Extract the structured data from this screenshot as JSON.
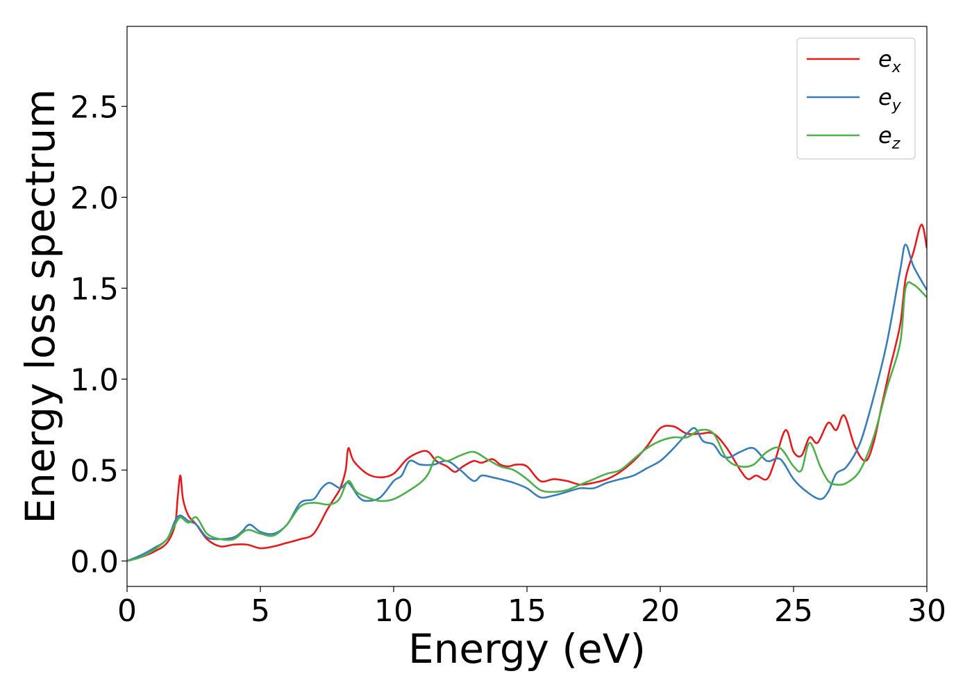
{
  "chart_data": {
    "type": "line",
    "title": "",
    "xlabel": "Energy (eV)",
    "ylabel": "Energy loss spectrum",
    "xlim": [
      0,
      30
    ],
    "ylim": [
      -0.14,
      2.94
    ],
    "xticks": [
      0,
      5,
      10,
      15,
      20,
      25,
      30
    ],
    "yticks": [
      0.0,
      0.5,
      1.0,
      1.5,
      2.0,
      2.5
    ],
    "xtick_labels": [
      "0",
      "5",
      "10",
      "15",
      "20",
      "25",
      "30"
    ],
    "ytick_labels": [
      "0.0",
      "0.5",
      "1.0",
      "1.5",
      "2.0",
      "2.5"
    ],
    "grid": false,
    "legend_position": "top-right",
    "series": [
      {
        "name": "e_x",
        "legend_base": "e",
        "legend_sub": "x",
        "color": "#e41a1c",
        "x": [
          0,
          0.5,
          1.0,
          1.5,
          1.8,
          1.9,
          2.0,
          2.1,
          2.3,
          2.6,
          3.0,
          3.5,
          4.0,
          4.5,
          5.0,
          5.5,
          6.0,
          6.5,
          7.0,
          7.5,
          7.8,
          8.0,
          8.2,
          8.3,
          8.5,
          9.0,
          9.5,
          10.0,
          10.5,
          11.0,
          11.3,
          11.6,
          12.0,
          12.3,
          12.6,
          13.0,
          13.3,
          13.7,
          14.0,
          14.3,
          14.6,
          15.0,
          15.5,
          16.0,
          16.5,
          17.0,
          17.5,
          18.0,
          18.5,
          19.0,
          19.5,
          20.0,
          20.5,
          21.0,
          21.5,
          22.0,
          22.5,
          23.0,
          23.3,
          23.6,
          24.0,
          24.3,
          24.7,
          25.0,
          25.3,
          25.6,
          25.9,
          26.3,
          26.6,
          26.9,
          27.3,
          27.7,
          28.0,
          28.3,
          28.6,
          29.0,
          29.2,
          29.5,
          29.8,
          30.0
        ],
        "values": [
          0.0,
          0.02,
          0.05,
          0.1,
          0.2,
          0.35,
          0.47,
          0.34,
          0.25,
          0.2,
          0.12,
          0.08,
          0.09,
          0.09,
          0.07,
          0.08,
          0.1,
          0.12,
          0.15,
          0.28,
          0.35,
          0.4,
          0.5,
          0.62,
          0.55,
          0.48,
          0.46,
          0.48,
          0.56,
          0.6,
          0.6,
          0.55,
          0.52,
          0.49,
          0.52,
          0.55,
          0.54,
          0.56,
          0.53,
          0.52,
          0.53,
          0.52,
          0.44,
          0.45,
          0.44,
          0.42,
          0.43,
          0.45,
          0.49,
          0.55,
          0.63,
          0.73,
          0.74,
          0.7,
          0.7,
          0.7,
          0.62,
          0.5,
          0.45,
          0.47,
          0.45,
          0.55,
          0.72,
          0.6,
          0.58,
          0.68,
          0.65,
          0.76,
          0.72,
          0.8,
          0.63,
          0.55,
          0.65,
          0.85,
          1.05,
          1.3,
          1.55,
          1.7,
          1.85,
          1.72
        ]
      },
      {
        "name": "e_y",
        "legend_base": "e",
        "legend_sub": "y",
        "color": "#377eb8",
        "x": [
          0,
          0.5,
          1.0,
          1.5,
          1.8,
          2.0,
          2.3,
          2.6,
          3.0,
          3.5,
          4.0,
          4.3,
          4.6,
          5.0,
          5.5,
          6.0,
          6.5,
          7.0,
          7.3,
          7.6,
          8.0,
          8.3,
          8.7,
          9.0,
          9.5,
          10.0,
          10.3,
          10.6,
          11.0,
          11.5,
          12.0,
          12.5,
          13.0,
          13.3,
          13.7,
          14.0,
          14.5,
          15.0,
          15.5,
          16.0,
          16.5,
          17.0,
          17.5,
          18.0,
          18.5,
          19.0,
          19.5,
          20.0,
          20.5,
          21.0,
          21.3,
          21.6,
          22.0,
          22.3,
          22.6,
          23.0,
          23.5,
          24.0,
          24.5,
          25.0,
          25.5,
          26.0,
          26.3,
          26.6,
          27.0,
          27.5,
          28.0,
          28.5,
          29.0,
          29.2,
          29.5,
          30.0
        ],
        "values": [
          0.0,
          0.03,
          0.07,
          0.12,
          0.22,
          0.25,
          0.22,
          0.2,
          0.13,
          0.12,
          0.13,
          0.16,
          0.2,
          0.16,
          0.15,
          0.2,
          0.32,
          0.34,
          0.4,
          0.43,
          0.4,
          0.43,
          0.35,
          0.33,
          0.35,
          0.44,
          0.47,
          0.55,
          0.53,
          0.53,
          0.55,
          0.5,
          0.44,
          0.47,
          0.46,
          0.45,
          0.43,
          0.4,
          0.35,
          0.36,
          0.38,
          0.4,
          0.4,
          0.43,
          0.45,
          0.47,
          0.51,
          0.55,
          0.62,
          0.7,
          0.73,
          0.66,
          0.64,
          0.58,
          0.57,
          0.6,
          0.62,
          0.55,
          0.56,
          0.45,
          0.38,
          0.34,
          0.38,
          0.48,
          0.52,
          0.65,
          0.9,
          1.2,
          1.6,
          1.74,
          1.62,
          1.49
        ]
      },
      {
        "name": "e_z",
        "legend_base": "e",
        "legend_sub": "z",
        "color": "#4daf4a",
        "x": [
          0,
          0.5,
          1.0,
          1.5,
          1.8,
          2.0,
          2.3,
          2.6,
          3.0,
          3.5,
          4.0,
          4.5,
          5.0,
          5.5,
          6.0,
          6.5,
          7.0,
          7.5,
          7.8,
          8.0,
          8.3,
          8.6,
          9.0,
          9.5,
          10.0,
          10.5,
          11.0,
          11.3,
          11.6,
          12.0,
          12.5,
          13.0,
          13.5,
          14.0,
          14.5,
          15.0,
          15.5,
          16.0,
          16.5,
          17.0,
          17.5,
          18.0,
          18.5,
          19.0,
          19.5,
          20.0,
          20.5,
          21.0,
          21.5,
          22.0,
          22.5,
          23.0,
          23.5,
          24.0,
          24.5,
          25.0,
          25.3,
          25.6,
          26.0,
          26.3,
          26.6,
          27.0,
          27.5,
          28.0,
          28.5,
          29.0,
          29.2,
          29.5,
          30.0
        ],
        "values": [
          0.0,
          0.02,
          0.06,
          0.12,
          0.2,
          0.24,
          0.21,
          0.24,
          0.15,
          0.12,
          0.12,
          0.17,
          0.15,
          0.14,
          0.2,
          0.3,
          0.32,
          0.31,
          0.32,
          0.35,
          0.44,
          0.38,
          0.35,
          0.33,
          0.34,
          0.38,
          0.43,
          0.48,
          0.57,
          0.55,
          0.58,
          0.6,
          0.56,
          0.52,
          0.5,
          0.45,
          0.39,
          0.38,
          0.39,
          0.42,
          0.45,
          0.48,
          0.5,
          0.56,
          0.62,
          0.66,
          0.68,
          0.68,
          0.72,
          0.7,
          0.56,
          0.52,
          0.53,
          0.6,
          0.62,
          0.52,
          0.5,
          0.65,
          0.52,
          0.44,
          0.42,
          0.43,
          0.5,
          0.68,
          0.95,
          1.2,
          1.5,
          1.52,
          1.45
        ]
      }
    ]
  }
}
